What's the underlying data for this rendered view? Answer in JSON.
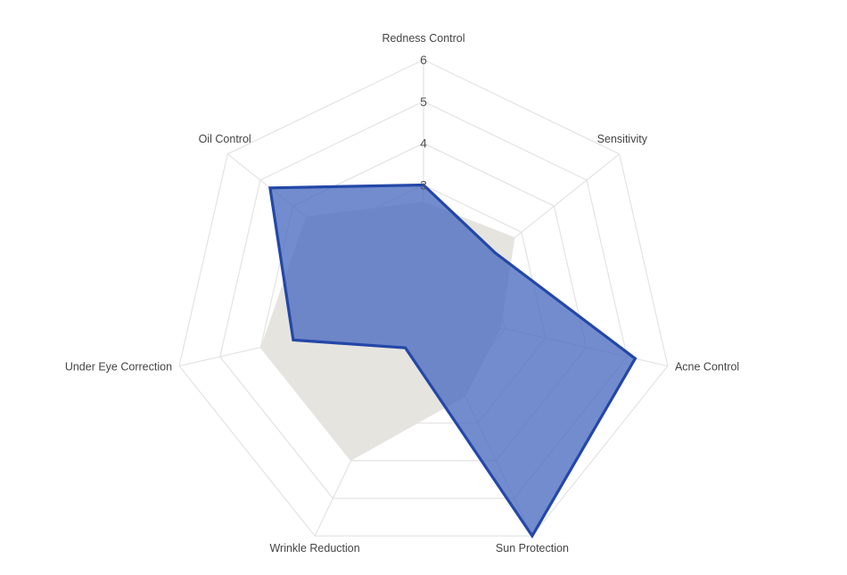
{
  "chart_data": {
    "type": "radar",
    "axes": [
      "Redness Control",
      "Sensitivity",
      "Acne Control",
      "Sun Protection",
      "Wrinkle Reduction",
      "Under Eye Correction",
      "Oil Control"
    ],
    "range": [
      0,
      6
    ],
    "tick_values": [
      3,
      4,
      5,
      6
    ],
    "tick_labels": [
      "3",
      "4",
      "5",
      "6"
    ],
    "grid": true,
    "series": [
      {
        "values": [
          2.6,
          2.8,
          1.9,
          2.3,
          4.0,
          4.0,
          3.6
        ],
        "color": "#e6e4df",
        "stroke": "none",
        "opacity": 1.0
      },
      {
        "values": [
          3.0,
          2.2,
          5.2,
          6.0,
          1.0,
          3.2,
          4.7
        ],
        "color": "#4a6cc0",
        "stroke": "#2447a8",
        "opacity": 0.78
      }
    ]
  }
}
